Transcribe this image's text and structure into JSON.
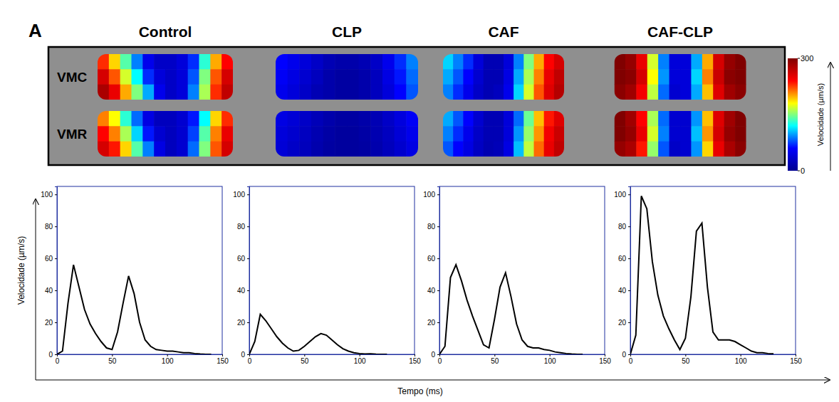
{
  "figure": {
    "letter": "A",
    "x_label": "Tempo (ms)",
    "y_label": "Velocidade (µm/s)"
  },
  "chart_data": [
    {
      "type": "heatmap",
      "columns": [
        "Control",
        "CLP",
        "CAF",
        "CAF-CLP"
      ],
      "rows": [
        "VMC",
        "VMR"
      ],
      "colorbar": {
        "title": "Velocidade (µm/s)",
        "range": [
          0,
          300
        ],
        "ticks": [
          0,
          300
        ]
      },
      "cells": [
        [
          [
            [
              230,
              190,
              140,
              90,
              50,
              30,
              30,
              40,
              70,
              130,
              200,
              240
            ],
            [
              260,
              220,
              170,
              120,
              70,
              40,
              30,
              40,
              80,
              150,
              220,
              260
            ],
            [
              280,
              250,
              200,
              150,
              100,
              50,
              30,
              40,
              90,
              160,
              230,
              270
            ]
          ],
          [
            [
              60,
              50,
              40,
              30,
              20,
              15,
              15,
              20,
              30,
              50,
              70,
              90
            ],
            [
              55,
              45,
              35,
              25,
              15,
              10,
              10,
              15,
              25,
              45,
              65,
              85
            ],
            [
              50,
              40,
              30,
              20,
              15,
              10,
              10,
              15,
              25,
              40,
              60,
              80
            ]
          ],
          [
            [
              110,
              90,
              70,
              40,
              20,
              20,
              40,
              90,
              150,
              200,
              240,
              260
            ],
            [
              100,
              80,
              60,
              35,
              20,
              20,
              45,
              100,
              160,
              210,
              250,
              270
            ],
            [
              90,
              70,
              50,
              30,
              20,
              25,
              50,
              110,
              170,
              220,
              255,
              275
            ]
          ],
          [
            [
              300,
              290,
              250,
              170,
              90,
              40,
              40,
              100,
              200,
              260,
              290,
              300
            ],
            [
              300,
              295,
              260,
              180,
              95,
              40,
              40,
              110,
              210,
              265,
              295,
              300
            ],
            [
              295,
              285,
              245,
              165,
              85,
              35,
              40,
              100,
              195,
              255,
              285,
              295
            ]
          ]
        ],
        [
          [
            [
              210,
              180,
              130,
              85,
              45,
              25,
              25,
              35,
              65,
              120,
              190,
              230
            ],
            [
              240,
              210,
              160,
              110,
              65,
              35,
              25,
              35,
              75,
              140,
              210,
              250
            ],
            [
              260,
              235,
              190,
              140,
              90,
              45,
              25,
              35,
              85,
              150,
              220,
              260
            ]
          ],
          [
            [
              45,
              38,
              30,
              22,
              15,
              10,
              10,
              14,
              20,
              30,
              42,
              55
            ],
            [
              40,
              34,
              26,
              18,
              12,
              8,
              8,
              12,
              18,
              26,
              38,
              50
            ],
            [
              38,
              30,
              24,
              16,
              10,
              8,
              8,
              10,
              16,
              24,
              34,
              45
            ]
          ],
          [
            [
              100,
              80,
              60,
              35,
              20,
              20,
              40,
              85,
              145,
              195,
              235,
              255
            ],
            [
              90,
              70,
              50,
              30,
              20,
              20,
              40,
              95,
              155,
              205,
              245,
              265
            ],
            [
              80,
              60,
              45,
              28,
              18,
              22,
              45,
              105,
              165,
              215,
              250,
              270
            ]
          ],
          [
            [
              300,
              285,
              240,
              160,
              85,
              35,
              35,
              95,
              195,
              255,
              285,
              300
            ],
            [
              300,
              290,
              250,
              170,
              90,
              35,
              35,
              105,
              205,
              260,
              290,
              300
            ],
            [
              290,
              280,
              235,
              155,
              80,
              30,
              35,
              95,
              190,
              250,
              280,
              295
            ]
          ]
        ]
      ]
    },
    {
      "type": "line",
      "xlim": [
        0,
        150
      ],
      "xticks": [
        0,
        50,
        100,
        150
      ],
      "ylim": [
        0,
        105
      ],
      "yticks": [
        0,
        20,
        40,
        60,
        80,
        100
      ],
      "x": [
        0,
        5,
        10,
        15,
        20,
        25,
        30,
        35,
        40,
        45,
        50,
        55,
        60,
        65,
        70,
        75,
        80,
        85,
        90,
        95,
        100,
        105,
        110,
        115,
        120,
        125,
        130,
        135,
        140
      ],
      "series": [
        {
          "color": "#000000",
          "values": [
            0,
            2,
            32,
            56,
            42,
            28,
            19,
            13,
            8,
            4,
            3,
            14,
            32,
            49,
            38,
            20,
            9,
            5,
            3,
            2.5,
            2,
            2,
            1.5,
            1,
            1,
            0.5,
            0.2,
            0,
            0
          ]
        }
      ]
    },
    {
      "type": "line",
      "xlim": [
        0,
        150
      ],
      "xticks": [
        0,
        50,
        100,
        150
      ],
      "ylim": [
        0,
        105
      ],
      "yticks": [
        0,
        20,
        40,
        60,
        80,
        100
      ],
      "x": [
        0,
        5,
        10,
        15,
        20,
        25,
        30,
        35,
        40,
        45,
        50,
        55,
        60,
        65,
        70,
        75,
        80,
        85,
        90,
        95,
        100,
        105,
        110,
        115,
        120,
        125
      ],
      "series": [
        {
          "color": "#000000",
          "values": [
            0,
            8,
            25,
            21,
            16,
            11,
            7,
            4,
            2,
            2.5,
            5,
            8,
            11,
            13,
            12,
            9,
            6,
            3.5,
            2,
            1,
            0.5,
            0.2,
            0.3,
            0.1,
            0,
            0
          ]
        }
      ]
    },
    {
      "type": "line",
      "xlim": [
        0,
        150
      ],
      "xticks": [
        0,
        50,
        100,
        150
      ],
      "ylim": [
        0,
        105
      ],
      "yticks": [
        0,
        20,
        40,
        60,
        80,
        100
      ],
      "x": [
        0,
        5,
        10,
        15,
        20,
        25,
        30,
        35,
        40,
        45,
        50,
        55,
        60,
        65,
        70,
        75,
        80,
        85,
        90,
        95,
        100,
        105,
        110,
        115,
        120,
        125,
        130
      ],
      "series": [
        {
          "color": "#000000",
          "values": [
            0,
            5,
            48,
            56,
            46,
            34,
            24,
            15,
            6,
            4,
            22,
            42,
            51,
            36,
            19,
            9,
            5,
            4,
            4,
            3,
            2.5,
            1.5,
            1,
            0.5,
            0.2,
            0,
            0
          ]
        }
      ]
    },
    {
      "type": "line",
      "xlim": [
        0,
        150
      ],
      "xticks": [
        0,
        50,
        100,
        150
      ],
      "ylim": [
        0,
        105
      ],
      "yticks": [
        0,
        20,
        40,
        60,
        80,
        100
      ],
      "x": [
        0,
        5,
        10,
        15,
        20,
        25,
        30,
        35,
        40,
        45,
        50,
        55,
        60,
        65,
        70,
        75,
        80,
        85,
        90,
        95,
        100,
        105,
        110,
        115,
        120,
        125,
        130
      ],
      "series": [
        {
          "color": "#000000",
          "values": [
            0,
            12,
            99,
            91,
            58,
            37,
            24,
            16,
            9,
            3,
            10,
            36,
            77,
            82,
            42,
            14,
            9,
            9,
            9,
            8,
            6,
            4,
            2,
            1,
            1,
            0.5,
            0.3
          ]
        }
      ]
    }
  ]
}
